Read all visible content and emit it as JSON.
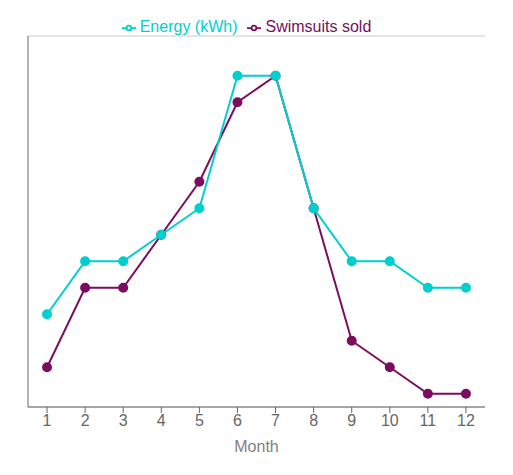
{
  "chart_data": {
    "type": "line",
    "x_label": "Month",
    "x": [
      1,
      2,
      3,
      4,
      5,
      6,
      7,
      8,
      9,
      10,
      11,
      12
    ],
    "series": [
      {
        "name": "Swimsuits sold",
        "color": "#7B0D5E",
        "marker": "circle",
        "values": [
          1,
          4,
          4,
          6,
          8,
          11,
          12,
          7,
          2,
          1,
          0,
          0
        ]
      },
      {
        "name": "Energy (kWh)",
        "color": "#00CFCF",
        "marker": "circle",
        "values": [
          3,
          5,
          5,
          6,
          7,
          12,
          12,
          7,
          5,
          5,
          4,
          4
        ]
      }
    ],
    "xlim": [
      0.5,
      12.5
    ],
    "xticks": [
      1,
      2,
      3,
      4,
      5,
      6,
      7,
      8,
      9,
      10,
      11,
      12
    ],
    "ylim": [
      -0.5,
      13.5
    ],
    "yticks": [
      0,
      1,
      2,
      3,
      4,
      5,
      6,
      7,
      8,
      9,
      10,
      11,
      12,
      13
    ],
    "grid": "y",
    "legend": "top",
    "tick_labels": "x"
  }
}
